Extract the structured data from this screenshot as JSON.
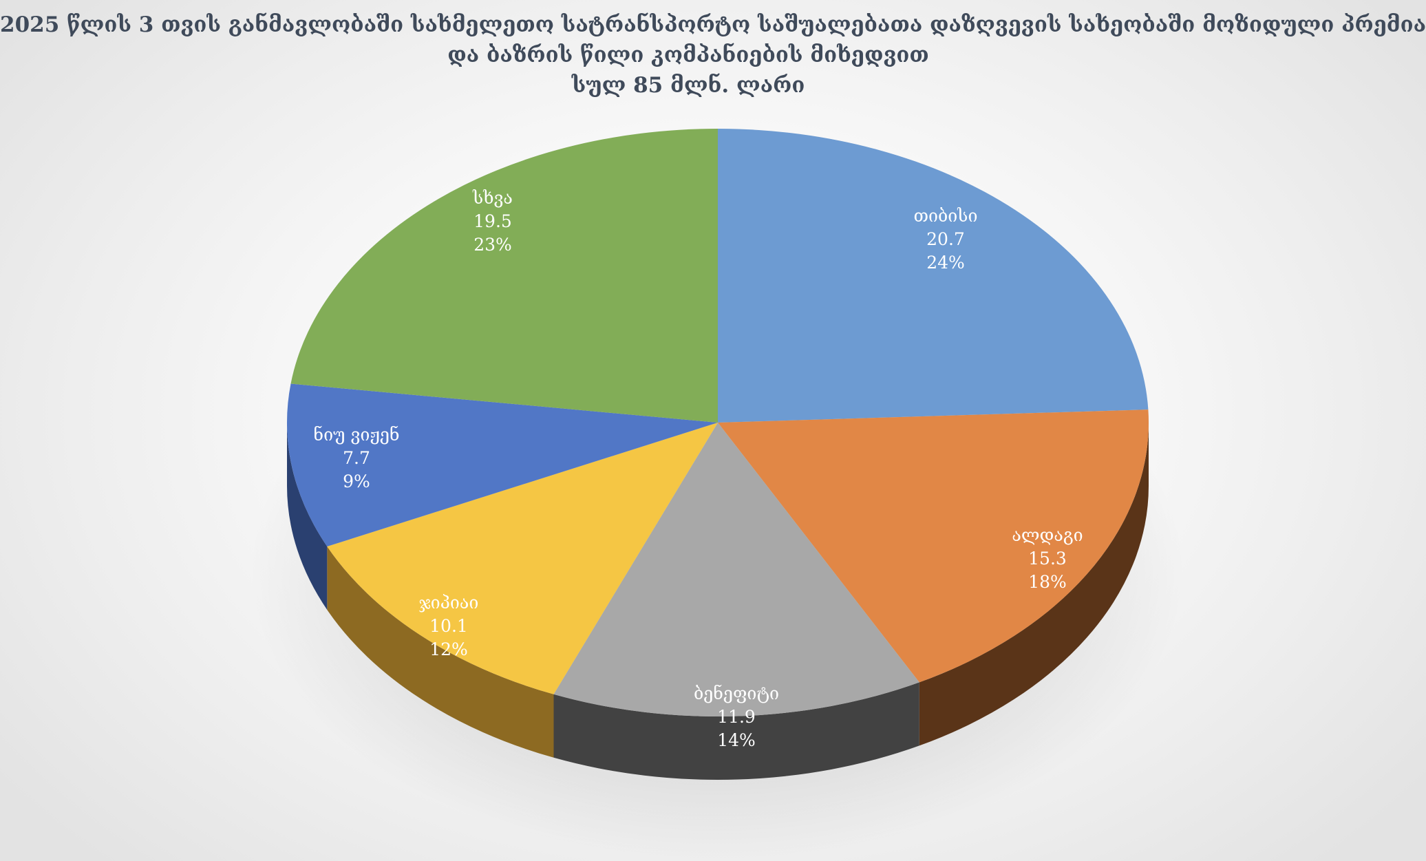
{
  "title": {
    "line1": "2025 წლის 3 თვის განმავლობაში სახმელეთო სატრანსპორტო საშუალებათა დაზღვევის სახეობაში მოზიდული პრემია",
    "line2": "და ბაზრის წილი კომპანიების მიხედვით",
    "line3": "სულ 85 მლნ. ლარი"
  },
  "chart_data": {
    "type": "pie",
    "style": "3d",
    "unit": "მლნ. ლარი",
    "total": 85,
    "legend": "none",
    "slices": [
      {
        "label": "თიბისი",
        "value": 20.7,
        "percent": "24%",
        "color": "#6d9bd2",
        "side_color": "#3f5f8c"
      },
      {
        "label": "ალდაგი",
        "value": 15.3,
        "percent": "18%",
        "color": "#e18746",
        "side_color": "#5a3418"
      },
      {
        "label": "ბენეფიტი",
        "value": 11.9,
        "percent": "14%",
        "color": "#a8a8a8",
        "side_color": "#424242"
      },
      {
        "label": "ჯიპიაი",
        "value": 10.1,
        "percent": "12%",
        "color": "#f5c644",
        "side_color": "#8d6a22"
      },
      {
        "label": "ნიუ ვიჟენ",
        "value": 7.7,
        "percent": "9%",
        "color": "#5177c6",
        "side_color": "#2a4070"
      },
      {
        "label": "სხვა",
        "value": 19.5,
        "percent": "23%",
        "color": "#82ad57",
        "side_color": "#4b6a33"
      }
    ]
  }
}
